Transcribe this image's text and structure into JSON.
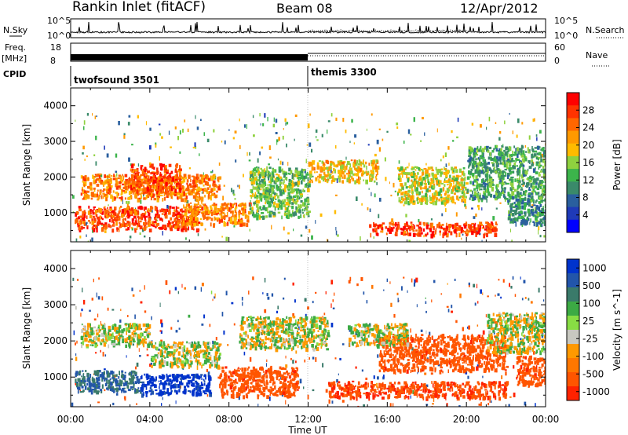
{
  "header": {
    "title": "Rankin Inlet (fitACF)",
    "beam": "Beam 08",
    "date": "12/Apr/2012"
  },
  "strips": {
    "nsky_label": "N.Sky",
    "nsearch_label": "N.Search",
    "noise_tick_top": "10^5",
    "noise_tick_bottom": "10^0",
    "freq_label": "Freq.",
    "freq_unit": "[MHz]",
    "freq_ticks": [
      "18",
      "8"
    ],
    "nave_label": "Nave",
    "nave_ticks": [
      "60",
      "0"
    ],
    "cpid_label": "CPID",
    "cpid_segments": [
      {
        "label": "twofsound 3501",
        "start_hour": 0,
        "end_hour": 12
      },
      {
        "label": "themis 3300",
        "start_hour": 12,
        "end_hour": 24
      }
    ]
  },
  "axes": {
    "xlabel": "Time UT",
    "ylabel": "Slant Range [km]",
    "xticks": [
      "00:00",
      "04:00",
      "08:00",
      "12:00",
      "16:00",
      "20:00",
      "00:00"
    ],
    "yticks": [
      "1000",
      "2000",
      "3000",
      "4000"
    ]
  },
  "colorbars": {
    "power": {
      "label": "Power [dB]",
      "ticks": [
        "28",
        "24",
        "20",
        "16",
        "12",
        "8",
        "4"
      ],
      "colors": [
        "#ff0000",
        "#ff3300",
        "#ff6600",
        "#ff9900",
        "#ffbb00",
        "#8fd13f",
        "#3cb44b",
        "#3a8a6a",
        "#2a5f9e",
        "#1f3ab8",
        "#0000ff"
      ]
    },
    "velocity": {
      "label": "Velocity [m s^-1]",
      "ticks": [
        "1000",
        "500",
        "100",
        "25",
        "-25",
        "-100",
        "-500",
        "-1000"
      ],
      "colors": [
        "#0033cc",
        "#2255aa",
        "#3a7a6a",
        "#3caa44",
        "#88dd44",
        "#c8c8c0",
        "#ff9900",
        "#ff7700",
        "#ff5500",
        "#ff2200"
      ]
    }
  },
  "chart_data": {
    "type": "heatmap",
    "x_range_hours": [
      0,
      24
    ],
    "y_range_km": [
      180,
      4500
    ],
    "panels": [
      {
        "name": "Power",
        "units": "dB",
        "regions": [
          {
            "t0": 0.2,
            "t1": 6.5,
            "r0": 550,
            "r1": 1200,
            "value": 28
          },
          {
            "t0": 0.5,
            "t1": 7.5,
            "r0": 1400,
            "r1": 2100,
            "value": 24
          },
          {
            "t0": 3.0,
            "t1": 5.5,
            "r0": 1600,
            "r1": 2400,
            "value": 28
          },
          {
            "t0": 5.5,
            "t1": 9.0,
            "r0": 700,
            "r1": 1300,
            "value": 24
          },
          {
            "t0": 9.0,
            "t1": 12.0,
            "r0": 900,
            "r1": 2300,
            "value": 14
          },
          {
            "t0": 12.0,
            "t1": 15.5,
            "r0": 1900,
            "r1": 2500,
            "value": 20
          },
          {
            "t0": 15.0,
            "t1": 21.5,
            "r0": 400,
            "r1": 750,
            "value": 28
          },
          {
            "t0": 16.5,
            "t1": 20.0,
            "r0": 1300,
            "r1": 2300,
            "value": 18
          },
          {
            "t0": 20.0,
            "t1": 24.0,
            "r0": 1400,
            "r1": 2900,
            "value": 12
          },
          {
            "t0": 22.0,
            "t1": 24.0,
            "r0": 700,
            "r1": 1400,
            "value": 10
          }
        ]
      },
      {
        "name": "Velocity",
        "units": "m s^-1",
        "regions": [
          {
            "t0": 0.2,
            "t1": 3.5,
            "r0": 600,
            "r1": 1200,
            "value": 100
          },
          {
            "t0": 0.5,
            "t1": 4.0,
            "r0": 1900,
            "r1": 2500,
            "value": 0
          },
          {
            "t0": 3.5,
            "t1": 7.0,
            "r0": 550,
            "r1": 1100,
            "value": 800
          },
          {
            "t0": 4.0,
            "t1": 7.5,
            "r0": 1300,
            "r1": 2000,
            "value": 0
          },
          {
            "t0": 7.5,
            "t1": 11.5,
            "r0": 500,
            "r1": 1300,
            "value": -300
          },
          {
            "t0": 8.5,
            "t1": 13.0,
            "r0": 1800,
            "r1": 2700,
            "value": 0
          },
          {
            "t0": 13.0,
            "t1": 22.0,
            "r0": 450,
            "r1": 900,
            "value": -400
          },
          {
            "t0": 15.5,
            "t1": 22.0,
            "r0": 1200,
            "r1": 2200,
            "value": -300
          },
          {
            "t0": 14.0,
            "t1": 17.0,
            "r0": 1900,
            "r1": 2500,
            "value": 0
          },
          {
            "t0": 21.0,
            "t1": 24.0,
            "r0": 1700,
            "r1": 2800,
            "value": 0
          },
          {
            "t0": 22.5,
            "t1": 24.0,
            "r0": 800,
            "r1": 1600,
            "value": -300
          }
        ]
      }
    ]
  }
}
